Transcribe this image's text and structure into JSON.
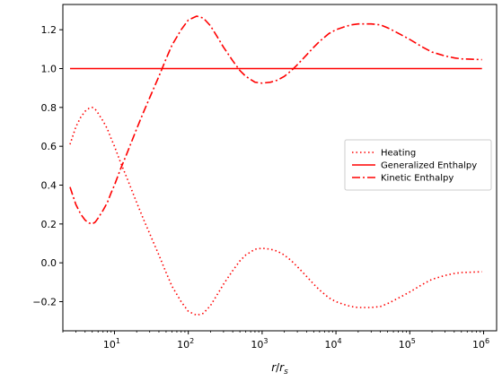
{
  "chart_data": {
    "type": "line",
    "title": "",
    "xlabel": "r/r_s",
    "xlabel_parts": {
      "var": "r",
      "slash": "/",
      "sub_base": "r",
      "sub": "s"
    },
    "ylabel": "",
    "xscale": "log",
    "xlim": [
      2.0,
      1500000
    ],
    "ylim": [
      -0.35,
      1.33
    ],
    "grid": false,
    "legend_position": "right",
    "x_ticks": [
      {
        "value": 10,
        "base": "10",
        "exp": "1"
      },
      {
        "value": 100,
        "base": "10",
        "exp": "2"
      },
      {
        "value": 1000,
        "base": "10",
        "exp": "3"
      },
      {
        "value": 10000,
        "base": "10",
        "exp": "4"
      },
      {
        "value": 100000,
        "base": "10",
        "exp": "5"
      },
      {
        "value": 1000000,
        "base": "10",
        "exp": "6"
      }
    ],
    "y_ticks": [
      {
        "value": -0.2,
        "label": "−0.2"
      },
      {
        "value": 0.0,
        "label": "0.0"
      },
      {
        "value": 0.2,
        "label": "0.2"
      },
      {
        "value": 0.4,
        "label": "0.4"
      },
      {
        "value": 0.6,
        "label": "0.6"
      },
      {
        "value": 0.8,
        "label": "0.8"
      },
      {
        "value": 1.0,
        "label": "1.0"
      },
      {
        "value": 1.2,
        "label": "1.2"
      }
    ],
    "series": [
      {
        "name": "Heating",
        "color": "#ff0000",
        "style": "dotted",
        "x": [
          2.5,
          3,
          3.5,
          4,
          4.5,
          5,
          5.5,
          6,
          7,
          8,
          9,
          10,
          12,
          15,
          20,
          25,
          30,
          40,
          50,
          60,
          80,
          100,
          130,
          160,
          200,
          250,
          300,
          400,
          500,
          600,
          800,
          1000,
          1300,
          1600,
          2000,
          2500,
          3000,
          4000,
          5000,
          6000,
          8000,
          10000,
          13000,
          16000,
          20000,
          30000,
          40000,
          50000,
          60000,
          80000,
          100000,
          150000,
          200000,
          300000,
          400000,
          500000,
          700000,
          950000
        ],
        "y": [
          0.61,
          0.7,
          0.75,
          0.78,
          0.795,
          0.8,
          0.79,
          0.77,
          0.73,
          0.69,
          0.64,
          0.6,
          0.52,
          0.43,
          0.31,
          0.22,
          0.15,
          0.04,
          -0.05,
          -0.12,
          -0.2,
          -0.25,
          -0.27,
          -0.26,
          -0.22,
          -0.16,
          -0.11,
          -0.04,
          0.01,
          0.04,
          0.07,
          0.075,
          0.07,
          0.06,
          0.04,
          0.01,
          -0.02,
          -0.07,
          -0.11,
          -0.14,
          -0.18,
          -0.2,
          -0.215,
          -0.225,
          -0.23,
          -0.23,
          -0.225,
          -0.21,
          -0.195,
          -0.17,
          -0.15,
          -0.11,
          -0.085,
          -0.065,
          -0.055,
          -0.05,
          -0.048,
          -0.046
        ]
      },
      {
        "name": "Generalized Enthalpy",
        "color": "#ff0000",
        "style": "solid",
        "x": [
          2.5,
          950000
        ],
        "y": [
          1.0,
          1.0
        ]
      },
      {
        "name": "Kinetic Enthalpy",
        "color": "#ff0000",
        "style": "dashdot",
        "x": [
          2.5,
          3,
          3.5,
          4,
          4.5,
          5,
          5.5,
          6,
          7,
          8,
          9,
          10,
          12,
          15,
          20,
          25,
          30,
          40,
          50,
          60,
          80,
          100,
          130,
          160,
          200,
          250,
          300,
          400,
          500,
          600,
          800,
          1000,
          1300,
          1600,
          2000,
          2500,
          3000,
          4000,
          5000,
          6000,
          8000,
          10000,
          13000,
          16000,
          20000,
          30000,
          40000,
          50000,
          60000,
          80000,
          100000,
          150000,
          200000,
          300000,
          400000,
          500000,
          700000,
          950000
        ],
        "y": [
          0.39,
          0.3,
          0.25,
          0.22,
          0.205,
          0.2,
          0.21,
          0.23,
          0.27,
          0.31,
          0.36,
          0.4,
          0.48,
          0.57,
          0.69,
          0.78,
          0.85,
          0.96,
          1.05,
          1.12,
          1.2,
          1.25,
          1.27,
          1.26,
          1.22,
          1.16,
          1.11,
          1.04,
          0.99,
          0.96,
          0.93,
          0.925,
          0.93,
          0.94,
          0.96,
          0.99,
          1.02,
          1.07,
          1.11,
          1.14,
          1.18,
          1.2,
          1.215,
          1.225,
          1.23,
          1.23,
          1.225,
          1.21,
          1.195,
          1.17,
          1.15,
          1.11,
          1.085,
          1.065,
          1.055,
          1.05,
          1.048,
          1.046
        ]
      }
    ]
  }
}
